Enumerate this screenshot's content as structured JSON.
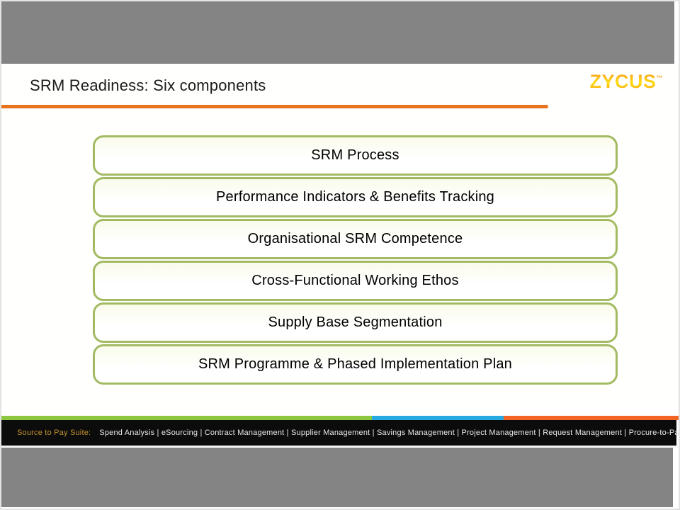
{
  "slide": {
    "title": "SRM Readiness: Six components",
    "logo_text": "ZYCUS",
    "logo_tm": "™",
    "components": [
      "SRM Process",
      "Performance Indicators & Benefits Tracking",
      "Organisational SRM Competence",
      "Cross-Functional Working Ethos",
      "Supply Base Segmentation",
      "SRM Programme & Phased Implementation Plan"
    ],
    "footer": {
      "prefix": "Source to Pay Suite:",
      "items": "Spend Analysis | eSourcing | Contract Management | Supplier Management | Savings Management | Project Management | Request Management | Procure-to-Pay"
    },
    "colors": {
      "title_accent_orange": "#E8731E",
      "box_border_green": "#A2BB62",
      "stripe_green": "#8DC63F",
      "stripe_blue": "#27AAE1",
      "stripe_orange": "#F26522",
      "footer_label_gold": "#C3922E",
      "logo_orange": "#F6921E",
      "logo_yellow": "#FFDE17",
      "band_gray": "#848484",
      "footer_black": "#0C0C0C"
    }
  }
}
